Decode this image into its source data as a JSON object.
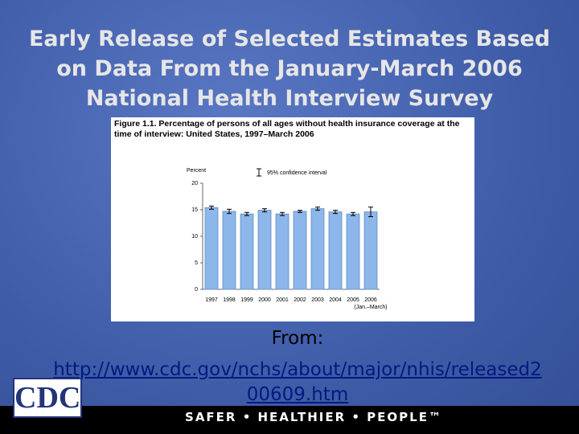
{
  "slide": {
    "title": "Early Release of Selected Estimates Based on Data From the January-March 2006 National Health Interview Survey",
    "from_label": "From:",
    "link": "http://www.cdc.gov/nchs/about/major/nhis/released200609.htm",
    "logo": "CDC",
    "footer": "SAFER • HEALTHIER • PEOPLE™"
  },
  "chart_data": {
    "type": "bar",
    "title": "Figure 1.1. Percentage of persons of all ages without health insurance coverage at the time of interview: United States, 1997–March 2006",
    "y_label": "Percent",
    "legend": "95% confidence interval",
    "categories": [
      "1997",
      "1998",
      "1999",
      "2000",
      "2001",
      "2002",
      "2003",
      "2004",
      "2005",
      "2006"
    ],
    "x_note": "(Jan.–March)",
    "values": [
      15.4,
      14.7,
      14.2,
      14.9,
      14.2,
      14.7,
      15.2,
      14.6,
      14.2,
      14.6
    ],
    "errors": [
      0.3,
      0.4,
      0.3,
      0.3,
      0.3,
      0.2,
      0.3,
      0.3,
      0.3,
      0.9
    ],
    "color": "#8db6ea",
    "ylim": [
      0,
      20
    ],
    "yticks": [
      0,
      5,
      10,
      15,
      20
    ]
  }
}
